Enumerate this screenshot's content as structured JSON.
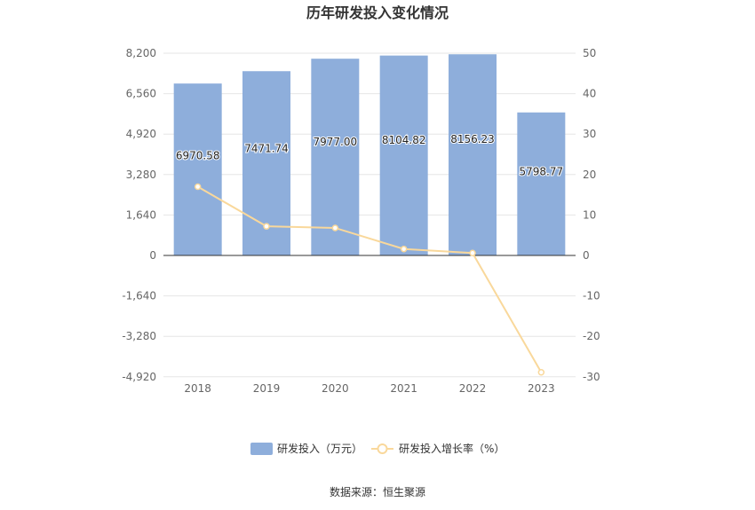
{
  "chart_data": {
    "type": "bar",
    "title": "历年研发投入变化情况",
    "categories": [
      "2018",
      "2019",
      "2020",
      "2021",
      "2022",
      "2023"
    ],
    "series": [
      {
        "name": "研发投入（万元）",
        "type": "bar",
        "axis": "left",
        "color": "#8eaedb",
        "values": [
          6970.58,
          7471.74,
          7977.0,
          8104.82,
          8156.23,
          5798.77
        ],
        "labels": [
          "6970.58",
          "7471.74",
          "7977.00",
          "8104.82",
          "8156.23",
          "5798.77"
        ]
      },
      {
        "name": "研发投入增长率（%）",
        "type": "line",
        "axis": "right",
        "color": "#f9d89b",
        "values": [
          17.0,
          7.2,
          6.8,
          1.6,
          0.6,
          -28.9
        ]
      }
    ],
    "left_axis": {
      "min": -4920,
      "max": 8200,
      "ticks": [
        8200,
        6560,
        4920,
        3280,
        1640,
        0,
        -1640,
        -3280,
        -4920
      ],
      "tick_labels": [
        "8,200",
        "6,560",
        "4,920",
        "3,280",
        "1,640",
        "0",
        "-1,640",
        "-3,280",
        "-4,920"
      ]
    },
    "right_axis": {
      "min": -30,
      "max": 50,
      "ticks": [
        50,
        40,
        30,
        20,
        10,
        0,
        -10,
        -20,
        -30
      ],
      "tick_labels": [
        "50",
        "40",
        "30",
        "20",
        "10",
        "0",
        "-10",
        "-20",
        "-30"
      ]
    },
    "grid": true,
    "legend_position": "bottom",
    "source": "数据来源：恒生聚源"
  }
}
